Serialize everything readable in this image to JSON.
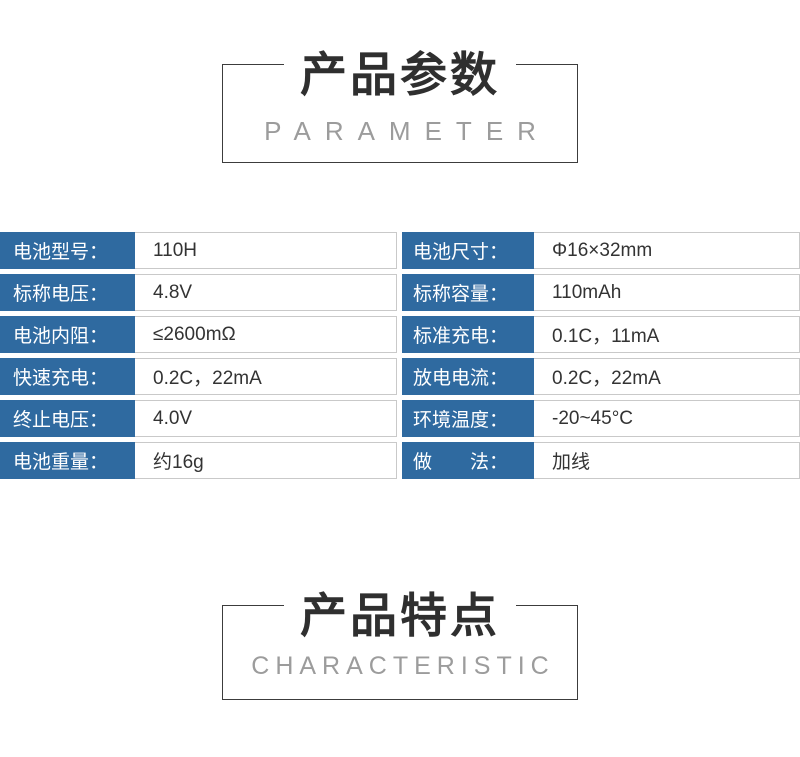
{
  "colors": {
    "accent_blue": "#2f6aa0",
    "value_border": "#c9c9c9",
    "value_text": "#333333",
    "title_text": "#2f2f2f",
    "subtitle_text": "#9c9c9c"
  },
  "parameter_header": {
    "title": "产品参数",
    "subtitle": "PARAMETER"
  },
  "characteristic_header": {
    "title": "产品特点",
    "subtitle": "CHARACTERISTIC"
  },
  "spec_table": {
    "left_rows": [
      {
        "label": "电池型号：",
        "value": "110H"
      },
      {
        "label": "标称电压：",
        "value": "4.8V"
      },
      {
        "label": "电池内阻：",
        "value": "≤2600mΩ"
      },
      {
        "label": "快速充电：",
        "value": "0.2C，22mA"
      },
      {
        "label": "终止电压：",
        "value": "4.0V"
      },
      {
        "label": "电池重量：",
        "value": "约16g"
      }
    ],
    "right_rows": [
      {
        "label": "电池尺寸：",
        "value": "Φ16×32mm"
      },
      {
        "label": "标称容量：",
        "value": "110mAh"
      },
      {
        "label": "标准充电：",
        "value": "0.1C，11mA"
      },
      {
        "label": "放电电流：",
        "value": "0.2C，22mA"
      },
      {
        "label": "环境温度：",
        "value": "-20~45°C"
      },
      {
        "label": "做　　法：",
        "value": "加线"
      }
    ]
  }
}
